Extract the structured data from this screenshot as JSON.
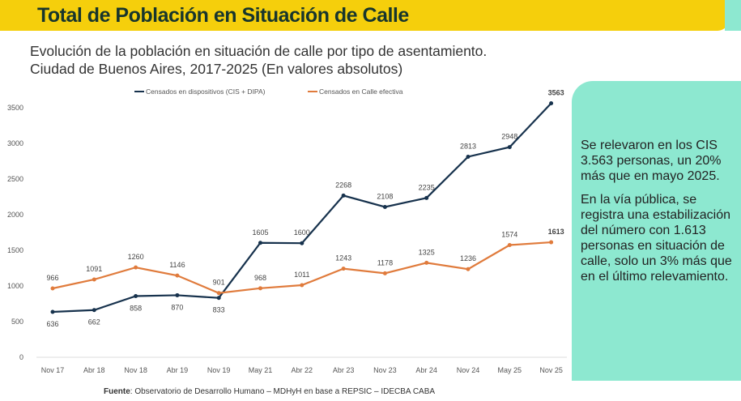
{
  "header": {
    "title": "Total de Población en Situación de Calle"
  },
  "subtitle": [
    "Evolución de la población en situación de calle por tipo de asentamiento.",
    "Ciudad de Buenos Aires, 2017-2025 (En valores  absolutos)"
  ],
  "note": [
    "Se relevaron en los CIS 3.563 personas, un 20% más que en mayo 2025.",
    "En la vía pública, se registra una estabilización del número con 1.613 personas en situación de calle, solo un 3% más que en el último relevamiento."
  ],
  "source": {
    "label": "Fuente",
    "text": ": Observatorio de Desarrollo Humano – MDHyH en base a REPSIC – IDECBA CABA"
  },
  "chart_data": {
    "type": "line",
    "categories": [
      "Nov 17",
      "Abr 18",
      "Nov 18",
      "Abr 19",
      "Nov 19",
      "May 21",
      "Abr 22",
      "Abr 23",
      "Nov 23",
      "Abr 24",
      "Nov 24",
      "May 25",
      "Nov 25"
    ],
    "yticks": [
      "0",
      "500",
      "1000",
      "1500",
      "2000",
      "2500",
      "3000",
      "3500"
    ],
    "ylim": [
      0,
      3500
    ],
    "legend": "top",
    "series": [
      {
        "name": "Censados en dispositivos (CIS + DIPA)",
        "color": "#17324d",
        "values": [
          636,
          662,
          858,
          870,
          833,
          1605,
          1600,
          2268,
          2108,
          2235,
          2813,
          2948,
          3563
        ]
      },
      {
        "name": "Censados en Calle efectiva",
        "color": "#e07b3c",
        "values": [
          966,
          1091,
          1260,
          1146,
          901,
          968,
          1011,
          1243,
          1178,
          1325,
          1236,
          1574,
          1613
        ]
      }
    ]
  }
}
